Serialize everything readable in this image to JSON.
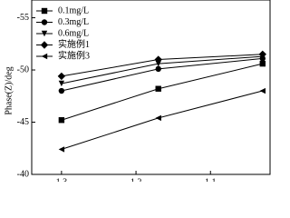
{
  "chart_data": {
    "type": "line",
    "y_label": "Phase(Z)/deg",
    "x": [
      1.3,
      1.17,
      1.03
    ],
    "xlim": [
      1.34,
      1.02
    ],
    "xticks": [
      1.3,
      1.2,
      1.1
    ],
    "ylim": [
      -40,
      -56.7
    ],
    "yticks": [
      -40,
      -45,
      -50,
      -55
    ],
    "legend": "upper left",
    "series": [
      {
        "name": "0.1mg/L",
        "color": "#000000",
        "marker": "square",
        "values": [
          -45.2,
          -48.2,
          -50.6
        ]
      },
      {
        "name": "0.3mg/L",
        "color": "#000000",
        "marker": "circle",
        "values": [
          -48.0,
          -50.1,
          -51.1
        ]
      },
      {
        "name": "0.6mg/L",
        "color": "#000000",
        "marker": "triangle-down",
        "values": [
          -48.7,
          -50.6,
          -51.3
        ]
      },
      {
        "name": "实施例1",
        "color": "#000000",
        "marker": "diamond",
        "values": [
          -49.4,
          -51.0,
          -51.5
        ]
      },
      {
        "name": "实施例3",
        "color": "#000000",
        "marker": "triangle-left",
        "values": [
          -42.4,
          -45.4,
          -48.0
        ]
      }
    ]
  }
}
